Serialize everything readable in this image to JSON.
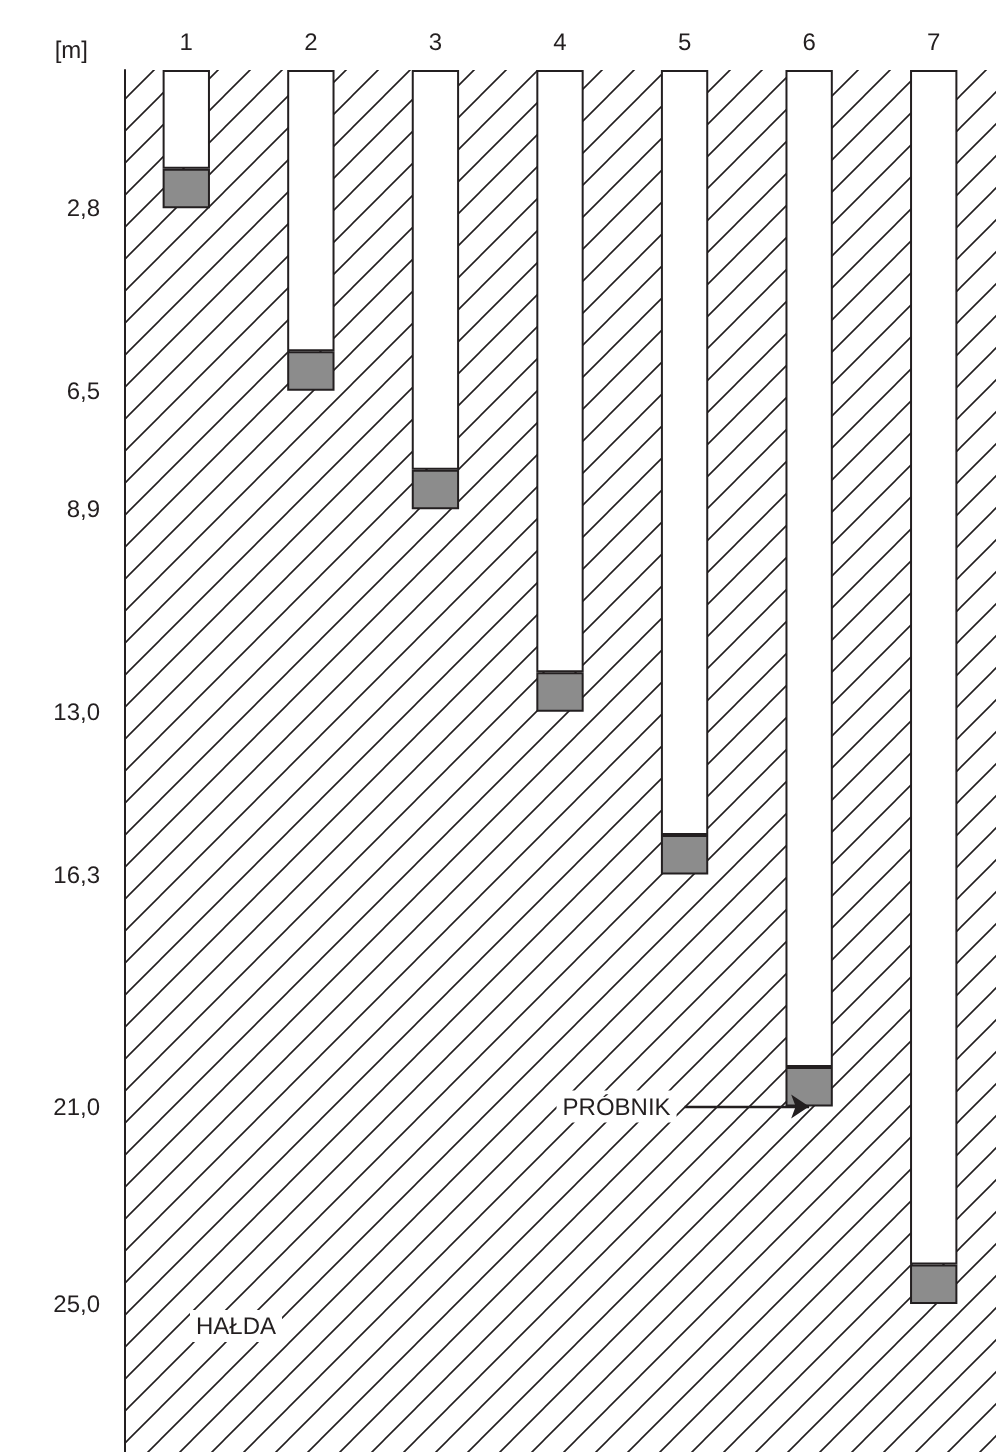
{
  "chart_data": {
    "type": "bar",
    "ylabel": "[m]",
    "categories": [
      "1",
      "2",
      "3",
      "4",
      "5",
      "6",
      "7"
    ],
    "stacked": true,
    "series": [
      {
        "color": "#ffffff",
        "values": [
          2.0,
          5.7,
          8.1,
          12.2,
          15.5,
          20.2,
          24.2
        ]
      },
      {
        "color": "#8c8c8c",
        "values": [
          0.8,
          0.8,
          0.8,
          0.8,
          0.8,
          0.8,
          0.8
        ]
      }
    ],
    "ylim": [
      28,
      0
    ],
    "yticks": [
      {
        "value": 2.8,
        "label": "2,8"
      },
      {
        "value": 6.5,
        "label": "6,5"
      },
      {
        "value": 8.9,
        "label": "8,9"
      },
      {
        "value": 13.0,
        "label": "13,0"
      },
      {
        "value": 16.3,
        "label": "16,3"
      },
      {
        "value": 21.0,
        "label": "21,0"
      },
      {
        "value": 25.0,
        "label": "25,0"
      }
    ],
    "annotations": [
      {
        "text": "PRÓBNIK",
        "x": "6",
        "y": 21.0
      },
      "HAŁDA"
    ],
    "grid": false
  }
}
